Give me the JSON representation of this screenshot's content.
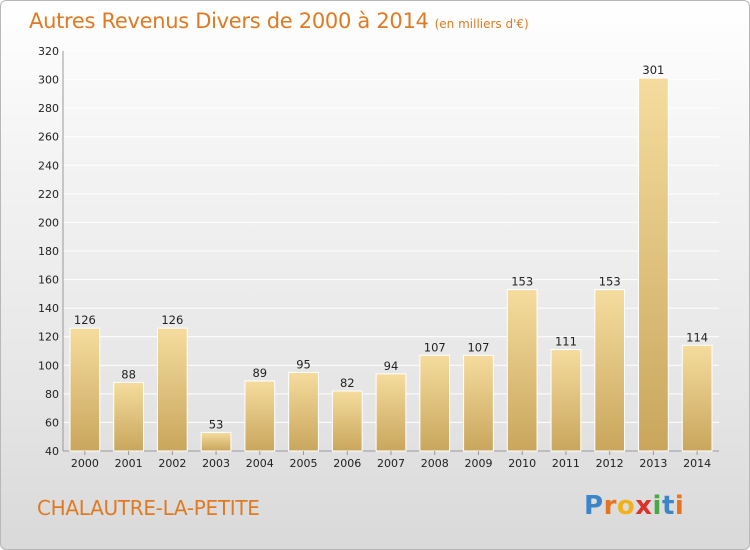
{
  "title": "Autres Revenus Divers de 2000 à 2014",
  "subtitle": "(en milliers d'€)",
  "commune": "CHALAUTRE-LA-PETITE",
  "logo": {
    "letters": [
      "P",
      "r",
      "o",
      "x",
      "i",
      "t",
      "i"
    ],
    "colors": [
      "#3a86c8",
      "#e8731e",
      "#f0b21c",
      "#d8342c",
      "#4aa843",
      "#3a86c8",
      "#e8731e"
    ]
  },
  "colors": {
    "bar_light": "#f5dc9e",
    "bar_dark": "#c9a65c",
    "title": "#e07a22",
    "grid": "#ffffff"
  },
  "chart_data": {
    "type": "bar",
    "categories": [
      "2000",
      "2001",
      "2002",
      "2003",
      "2004",
      "2005",
      "2006",
      "2007",
      "2008",
      "2009",
      "2010",
      "2011",
      "2012",
      "2013",
      "2014"
    ],
    "values": [
      126,
      88,
      126,
      53,
      89,
      95,
      82,
      94,
      107,
      107,
      153,
      111,
      153,
      301,
      114
    ],
    "ylim": [
      40,
      320
    ],
    "yticks": [
      40,
      60,
      80,
      100,
      120,
      140,
      160,
      180,
      200,
      220,
      240,
      260,
      280,
      300,
      320
    ],
    "grid": true,
    "xlabel": "",
    "ylabel": ""
  }
}
